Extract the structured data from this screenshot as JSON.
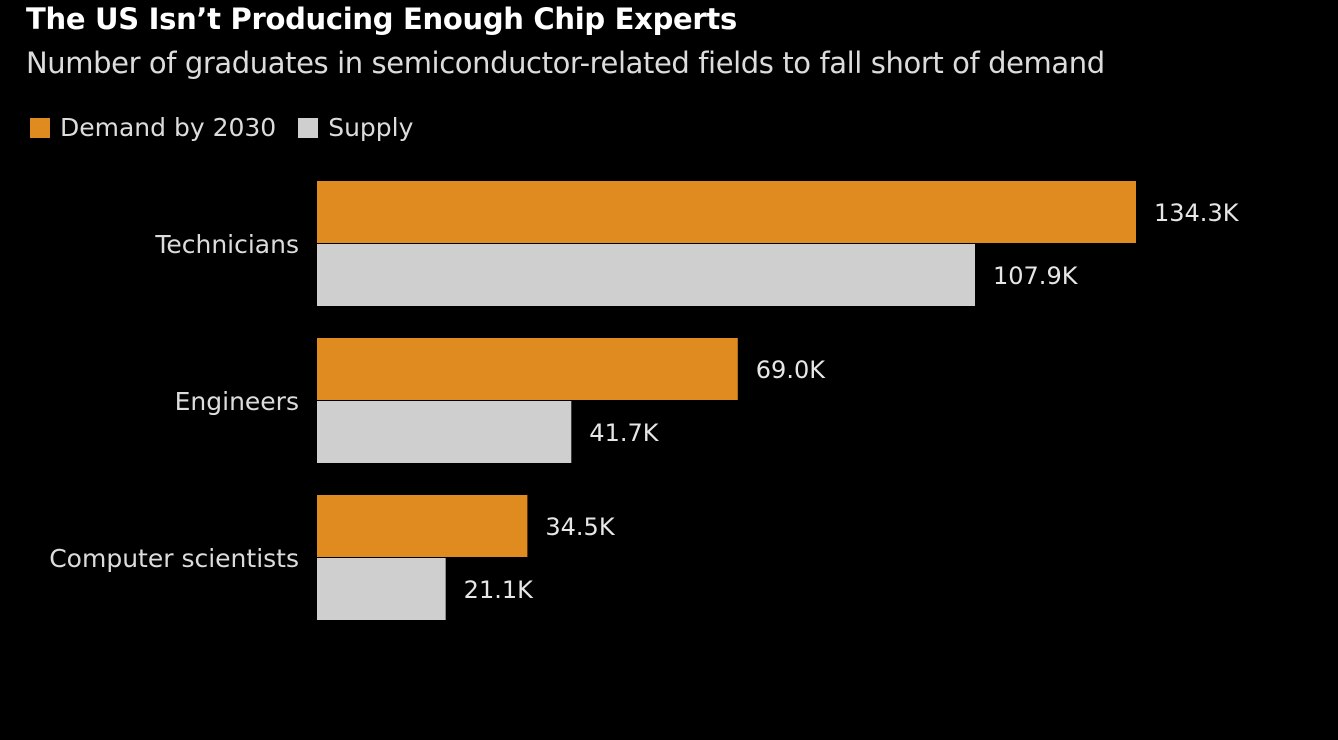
{
  "chart_data": {
    "type": "bar",
    "orientation": "horizontal",
    "title": "The US Isn’t Producing Enough Chip Experts",
    "subtitle": "Number of graduates in semiconductor-related fields to fall short of demand",
    "categories": [
      "Technicians",
      "Engineers",
      "Computer scientists"
    ],
    "series": [
      {
        "name": "Demand by 2030",
        "color": "#E08B20",
        "values": [
          134.3,
          69.0,
          34.5
        ],
        "labels": [
          "134.3K",
          "69.0K",
          "34.5K"
        ]
      },
      {
        "name": "Supply",
        "color": "#CFCFD0",
        "values": [
          107.9,
          41.7,
          21.1
        ],
        "labels": [
          "107.9K",
          "41.7K",
          "21.1K"
        ]
      }
    ],
    "unit": "thousands",
    "xlim": [
      0,
      134.3
    ],
    "grid": false,
    "legend": "top-left",
    "background": "#000000"
  }
}
